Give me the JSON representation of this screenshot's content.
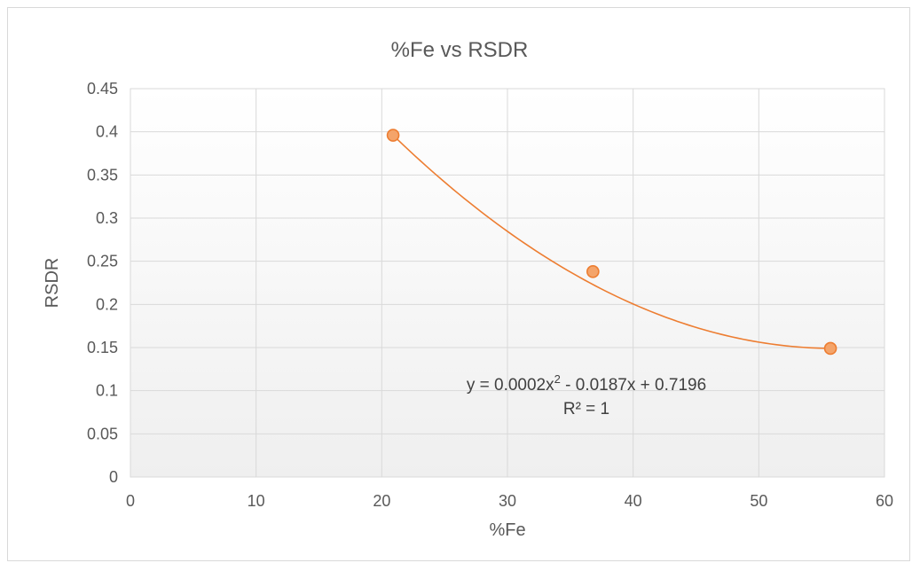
{
  "chart_data": {
    "type": "scatter",
    "title": "%Fe vs RSDR",
    "xlabel": "%Fe",
    "ylabel": "RSDR",
    "xlim": [
      0,
      60
    ],
    "ylim": [
      0,
      0.45
    ],
    "x_ticks": [
      "0",
      "10",
      "20",
      "30",
      "40",
      "50",
      "60"
    ],
    "y_ticks": [
      "0",
      "0.05",
      "0.1",
      "0.15",
      "0.2",
      "0.25",
      "0.3",
      "0.35",
      "0.4",
      "0.45"
    ],
    "grid": true,
    "series": [
      {
        "x": [
          20.9,
          36.8,
          55.7
        ],
        "y": [
          0.396,
          0.238,
          0.149
        ],
        "marker_color": "#f4a46a",
        "marker_edge": "#ed7d31"
      }
    ],
    "trendline": {
      "type": "polynomial",
      "order": 2,
      "coefficients": [
        0.0002,
        -0.0187,
        0.7196
      ],
      "color": "#ed7d31",
      "equation_prefix": "y = 0.0002x",
      "equation_exp": "2",
      "equation_suffix": " - 0.0187x + 0.7196",
      "r2_label": "R² = 1"
    }
  }
}
